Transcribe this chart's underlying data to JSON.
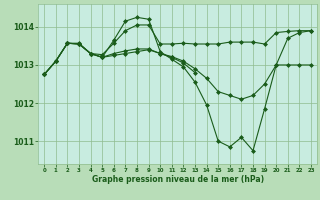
{
  "title": "Graphe pression niveau de la mer (hPa)",
  "background_color": "#b8ddb8",
  "plot_bg_color": "#c8ece0",
  "grid_color": "#8fbc8f",
  "line_color": "#1a5c1a",
  "xlim": [
    -0.5,
    23.5
  ],
  "ylim": [
    1010.4,
    1014.6
  ],
  "yticks": [
    1011,
    1012,
    1013,
    1014
  ],
  "xtick_labels": [
    "0",
    "1",
    "2",
    "3",
    "4",
    "5",
    "6",
    "7",
    "8",
    "9",
    "10",
    "11",
    "12",
    "13",
    "14",
    "15",
    "16",
    "17",
    "18",
    "19",
    "20",
    "21",
    "22",
    "23"
  ],
  "series": [
    {
      "x": [
        0,
        1,
        2,
        3,
        4,
        5,
        6,
        7,
        8,
        9,
        10,
        11,
        12,
        13,
        14,
        15,
        16,
        17,
        18,
        19,
        20,
        21,
        22,
        23
      ],
      "y": [
        1012.75,
        1013.1,
        1013.57,
        1013.57,
        1013.3,
        1013.27,
        1013.57,
        1013.9,
        1014.05,
        1014.05,
        1013.55,
        1013.55,
        1013.57,
        1013.55,
        1013.55,
        1013.55,
        1013.6,
        1013.6,
        1013.6,
        1013.55,
        1013.85,
        1013.88,
        1013.9,
        1013.9
      ]
    },
    {
      "x": [
        0,
        1,
        2,
        3,
        4,
        5,
        6,
        7,
        8,
        9,
        10,
        11,
        12,
        13,
        14,
        15,
        16,
        17,
        18,
        19,
        20,
        21,
        22,
        23
      ],
      "y": [
        1012.75,
        1013.1,
        1013.57,
        1013.55,
        1013.3,
        1013.2,
        1013.65,
        1014.15,
        1014.25,
        1014.2,
        1013.35,
        1013.15,
        1012.95,
        1012.55,
        1011.95,
        1011.0,
        1010.85,
        1011.1,
        1010.75,
        1011.85,
        1013.0,
        1013.7,
        1013.85,
        1013.9
      ]
    },
    {
      "x": [
        0,
        1,
        2,
        3,
        4,
        5,
        6,
        7,
        8,
        9,
        10,
        11,
        12,
        13,
        14,
        15,
        16,
        17,
        18,
        19,
        20,
        21,
        22,
        23
      ],
      "y": [
        1012.75,
        1013.1,
        1013.57,
        1013.55,
        1013.3,
        1013.2,
        1013.3,
        1013.37,
        1013.42,
        1013.42,
        1013.3,
        1013.22,
        1013.1,
        1012.9,
        1012.65,
        1012.3,
        1012.2,
        1012.1,
        1012.2,
        1012.5,
        1013.0,
        1013.0,
        1013.0,
        1013.0
      ]
    },
    {
      "x": [
        0,
        1,
        2,
        3,
        4,
        5,
        6,
        7,
        8,
        9,
        10,
        11,
        12,
        13
      ],
      "y": [
        1012.75,
        1013.1,
        1013.57,
        1013.55,
        1013.3,
        1013.2,
        1013.25,
        1013.3,
        1013.35,
        1013.4,
        1013.3,
        1013.2,
        1013.05,
        1012.8
      ]
    }
  ]
}
